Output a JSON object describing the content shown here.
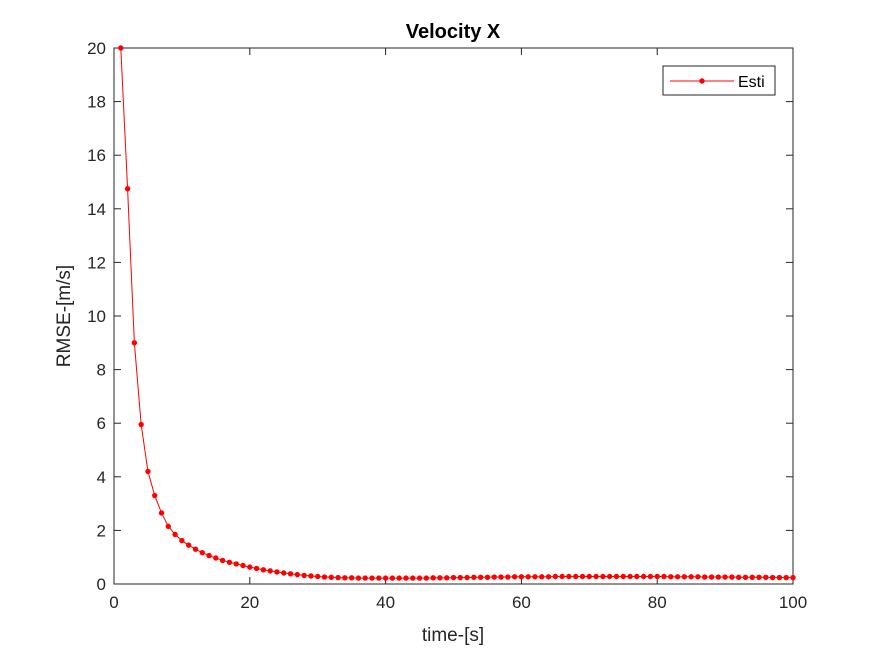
{
  "chart_data": {
    "type": "line",
    "title": "Velocity X",
    "xlabel": "time-[s]",
    "ylabel": "RMSE-[m/s]",
    "xlim": [
      0,
      100
    ],
    "ylim": [
      0,
      20
    ],
    "xticks": [
      0,
      20,
      40,
      60,
      80,
      100
    ],
    "yticks": [
      0,
      2,
      4,
      6,
      8,
      10,
      12,
      14,
      16,
      18,
      20
    ],
    "grid": false,
    "box": true,
    "legend_position": "top-right",
    "series": [
      {
        "name": "Esti",
        "color": "#ff0000",
        "marker": "dot",
        "x": [
          1,
          2,
          3,
          4,
          5,
          6,
          7,
          8,
          9,
          10,
          11,
          12,
          13,
          14,
          15,
          16,
          17,
          18,
          19,
          20,
          21,
          22,
          23,
          24,
          25,
          26,
          27,
          28,
          29,
          30,
          31,
          32,
          33,
          34,
          35,
          36,
          37,
          38,
          39,
          40,
          41,
          42,
          43,
          44,
          45,
          46,
          47,
          48,
          49,
          50,
          51,
          52,
          53,
          54,
          55,
          56,
          57,
          58,
          59,
          60,
          61,
          62,
          63,
          64,
          65,
          66,
          67,
          68,
          69,
          70,
          71,
          72,
          73,
          74,
          75,
          76,
          77,
          78,
          79,
          80,
          81,
          82,
          83,
          84,
          85,
          86,
          87,
          88,
          89,
          90,
          91,
          92,
          93,
          94,
          95,
          96,
          97,
          98,
          99,
          100
        ],
        "y": [
          20.0,
          14.75,
          9.0,
          5.95,
          4.2,
          3.3,
          2.65,
          2.15,
          1.85,
          1.62,
          1.45,
          1.3,
          1.17,
          1.06,
          0.97,
          0.88,
          0.81,
          0.75,
          0.69,
          0.63,
          0.58,
          0.53,
          0.49,
          0.45,
          0.41,
          0.38,
          0.35,
          0.32,
          0.3,
          0.28,
          0.26,
          0.25,
          0.24,
          0.23,
          0.23,
          0.22,
          0.22,
          0.22,
          0.22,
          0.22,
          0.22,
          0.22,
          0.22,
          0.22,
          0.22,
          0.22,
          0.23,
          0.23,
          0.23,
          0.24,
          0.24,
          0.24,
          0.25,
          0.25,
          0.25,
          0.26,
          0.26,
          0.26,
          0.27,
          0.27,
          0.27,
          0.27,
          0.27,
          0.27,
          0.28,
          0.28,
          0.28,
          0.28,
          0.28,
          0.28,
          0.28,
          0.28,
          0.28,
          0.28,
          0.28,
          0.28,
          0.28,
          0.28,
          0.28,
          0.28,
          0.28,
          0.27,
          0.27,
          0.27,
          0.27,
          0.27,
          0.26,
          0.26,
          0.26,
          0.26,
          0.26,
          0.25,
          0.25,
          0.25,
          0.25,
          0.25,
          0.24,
          0.24,
          0.24,
          0.24
        ]
      }
    ]
  }
}
